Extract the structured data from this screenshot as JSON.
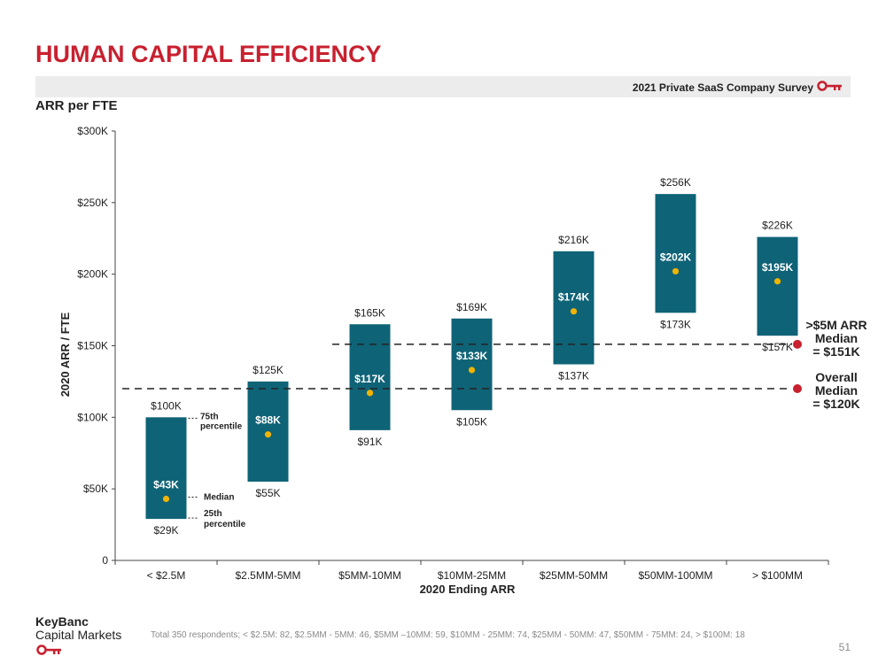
{
  "header": {
    "title": "HUMAN CAPITAL EFFICIENCY",
    "survey": "2021 Private SaaS Company Survey",
    "subtitle": "ARR per FTE"
  },
  "colors": {
    "bar": "#0f6377",
    "median_dot": "#f0b400",
    "brand_red": "#c8202f",
    "reference_dot": "#c8202f"
  },
  "chart_data": {
    "type": "bar",
    "subtype": "floating-range",
    "xlabel": "2020 Ending ARR",
    "ylabel": "2020 ARR / FTE",
    "ylim": [
      0,
      300
    ],
    "yticks": [
      0,
      50,
      100,
      150,
      200,
      250,
      300
    ],
    "ytick_labels": [
      "0",
      "$50K",
      "$100K",
      "$150K",
      "$200K",
      "$250K",
      "$300K"
    ],
    "categories": [
      "< $2.5M",
      "$2.5MM-5MM",
      "$5MM-10MM",
      "$10MM-25MM",
      "$25MM-50MM",
      "$50MM-100MM",
      "> $100MM"
    ],
    "series": [
      {
        "name": "25th percentile",
        "values": [
          29,
          55,
          91,
          105,
          137,
          173,
          157
        ]
      },
      {
        "name": "75th percentile",
        "values": [
          100,
          125,
          165,
          169,
          216,
          256,
          226
        ]
      },
      {
        "name": "Median",
        "values": [
          43,
          88,
          117,
          133,
          174,
          202,
          195
        ]
      }
    ],
    "low_labels": [
      "$29K",
      "$55K",
      "$91K",
      "$105K",
      "$137K",
      "$173K",
      "$157K"
    ],
    "high_labels": [
      "$100K",
      "$125K",
      "$165K",
      "$169K",
      "$216K",
      "$256K",
      "$226K"
    ],
    "median_labels": [
      "$43K",
      "$88K",
      "$117K",
      "$133K",
      "$174K",
      "$202K",
      "$195K"
    ],
    "legend_annotations": {
      "p75": [
        "75th",
        "percentile"
      ],
      "median": "Median",
      "p25": [
        "25th",
        "percentile"
      ]
    },
    "reference_lines": [
      {
        "value": 151,
        "start_category": 2,
        "label": [
          ">$5M ARR",
          "Median",
          "= $151K"
        ]
      },
      {
        "value": 120,
        "start_category": 0,
        "label": [
          "Overall",
          "Median",
          "= $120K"
        ]
      }
    ],
    "grid": false
  },
  "footer": {
    "logo_line1": "KeyBanc",
    "logo_line2": "Capital Markets",
    "footnote": "Total 350 respondents; < $2.5M: 82, $2.5MM - 5MM: 46, $5MM –10MM: 59, $10MM - 25MM: 74, $25MM - 50MM: 47, $50MM - 75MM: 24, > $100M: 18",
    "page_number": "51"
  }
}
